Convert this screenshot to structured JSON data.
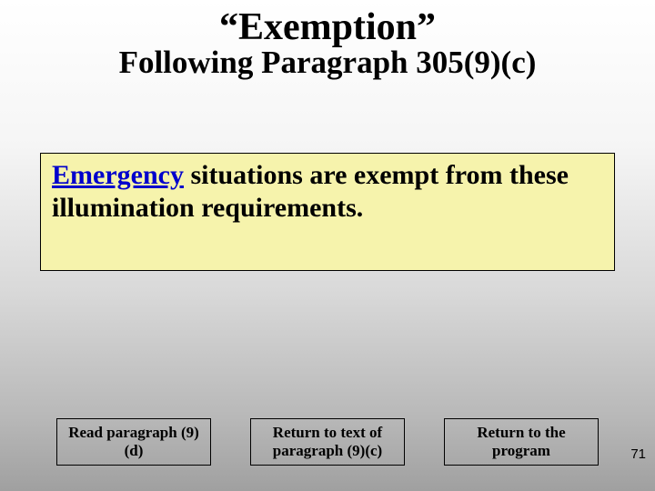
{
  "title": {
    "main": "“Exemption”",
    "sub": "Following Paragraph 305(9)(c)"
  },
  "callout": {
    "link_text": "Emergency",
    "rest_text": " situations are exempt from these illumination requirements."
  },
  "buttons": {
    "read": "Read paragraph (9)(d)",
    "return_text": "Return to text of paragraph (9)(c)",
    "return_program": "Return to the program"
  },
  "slide_number": "71",
  "colors": {
    "callout_bg": "#f6f3ac",
    "link_color": "#0000cc",
    "text_color": "#000000",
    "border_color": "#000000"
  }
}
